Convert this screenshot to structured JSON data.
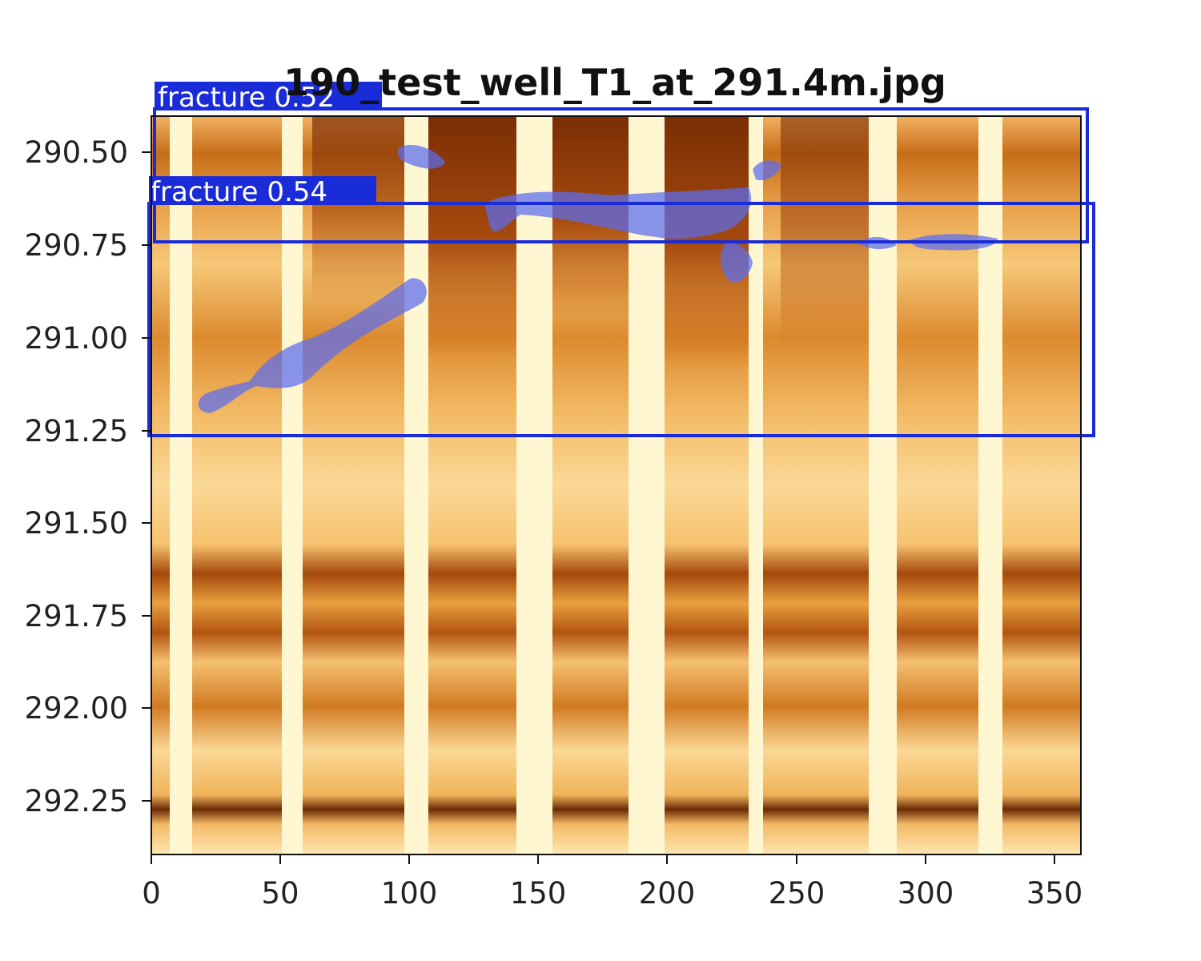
{
  "image": {
    "title": "190_test_well_T1_at_291.4m.jpg"
  },
  "axes": {
    "x_ticks": [
      "0",
      "50",
      "100",
      "150",
      "200",
      "250",
      "300",
      "350"
    ],
    "y_ticks": [
      "290.50",
      "290.75",
      "291.00",
      "291.25",
      "291.50",
      "291.75",
      "292.00",
      "292.25"
    ],
    "x_range": [
      0,
      360
    ],
    "y_range": [
      290.4,
      292.4
    ]
  },
  "detections": [
    {
      "label": "fracture  0.52",
      "class": "fracture",
      "confidence": 0.52
    },
    {
      "label": "fracture  0.54",
      "class": "fracture",
      "confidence": 0.54
    }
  ],
  "colors": {
    "box": "#1a2bd8",
    "mask": "#5a6cf0",
    "image_dark": "#6b2a04",
    "image_mid": "#c9701a",
    "image_light": "#fff6d6"
  }
}
